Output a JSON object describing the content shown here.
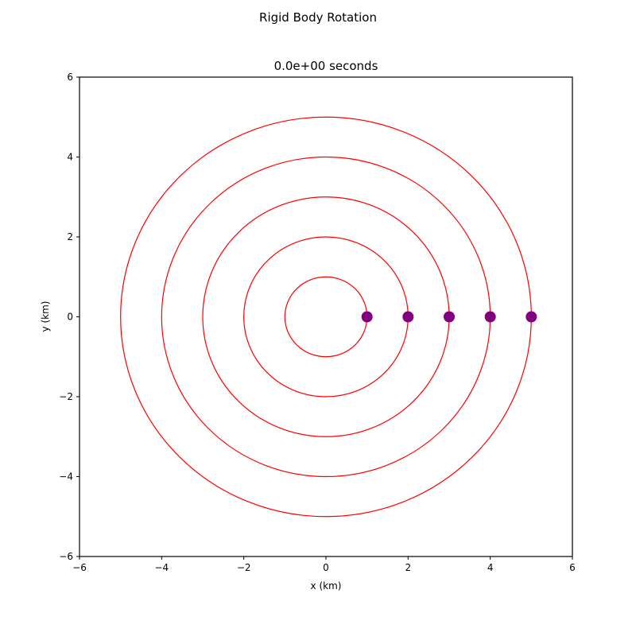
{
  "chart_data": {
    "type": "scatter",
    "suptitle": "Rigid Body Rotation",
    "title": "0.0e+00 seconds",
    "xlabel": "x (km)",
    "ylabel": "y (km)",
    "xlim": [
      -6,
      6
    ],
    "ylim": [
      -6,
      6
    ],
    "xticks": [
      -6,
      -4,
      -2,
      0,
      2,
      4,
      6
    ],
    "yticks": [
      -6,
      -4,
      -2,
      0,
      2,
      4,
      6
    ],
    "xtick_labels": [
      "−6",
      "−4",
      "−2",
      "0",
      "2",
      "4",
      "6"
    ],
    "ytick_labels": [
      "−6",
      "−4",
      "−2",
      "0",
      "2",
      "4",
      "6"
    ],
    "grid": false,
    "orbits": {
      "radii": [
        1,
        2,
        3,
        4,
        5
      ],
      "color": "#ff0000"
    },
    "points": {
      "x": [
        1,
        2,
        3,
        4,
        5
      ],
      "y": [
        0,
        0,
        0,
        0,
        0
      ],
      "color": "#800080"
    }
  }
}
